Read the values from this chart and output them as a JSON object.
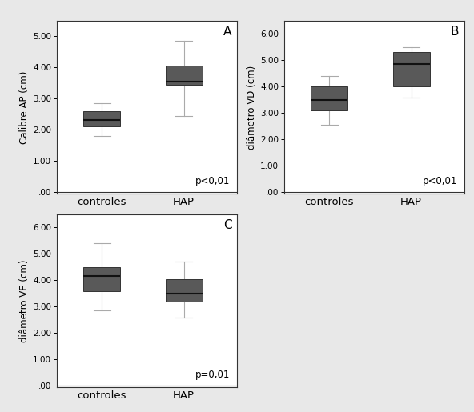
{
  "panels": [
    {
      "label": "A",
      "ylabel": "Calibre AP (cm)",
      "ylim": [
        -0.05,
        5.5
      ],
      "yticks": [
        0.0,
        1.0,
        2.0,
        3.0,
        4.0,
        5.0
      ],
      "ytick_labels": [
        ".00",
        "1.00",
        "2.00",
        "3.00",
        "4.00",
        "5.00"
      ],
      "ptext": "p<0,01",
      "groups": [
        {
          "name": "controles",
          "median": 2.3,
          "q1": 2.1,
          "q3": 2.6,
          "whisker_low": 1.8,
          "whisker_high": 2.85
        },
        {
          "name": "HAP",
          "median": 3.55,
          "q1": 3.45,
          "q3": 4.05,
          "whisker_low": 2.45,
          "whisker_high": 4.85
        }
      ]
    },
    {
      "label": "B",
      "ylabel": "diâmetro VD (cm)",
      "ylim": [
        -0.05,
        6.5
      ],
      "yticks": [
        0.0,
        1.0,
        2.0,
        3.0,
        4.0,
        5.0,
        6.0
      ],
      "ytick_labels": [
        ".00",
        "1.00",
        "2.00",
        "3.00",
        "4.00",
        "5.00",
        "6.00"
      ],
      "ptext": "p<0,01",
      "groups": [
        {
          "name": "controles",
          "median": 3.5,
          "q1": 3.1,
          "q3": 4.0,
          "whisker_low": 2.55,
          "whisker_high": 4.4
        },
        {
          "name": "HAP",
          "median": 4.85,
          "q1": 4.0,
          "q3": 5.3,
          "whisker_low": 3.6,
          "whisker_high": 5.5
        }
      ]
    },
    {
      "label": "C",
      "ylabel": "diâmetro VE (cm)",
      "ylim": [
        -0.05,
        6.5
      ],
      "yticks": [
        0.0,
        1.0,
        2.0,
        3.0,
        4.0,
        5.0,
        6.0
      ],
      "ytick_labels": [
        ".00",
        "1.00",
        "2.00",
        "3.00",
        "4.00",
        "5.00",
        "6.00"
      ],
      "ptext": "p=0,01",
      "groups": [
        {
          "name": "controles",
          "median": 4.15,
          "q1": 3.6,
          "q3": 4.5,
          "whisker_low": 2.85,
          "whisker_high": 5.4
        },
        {
          "name": "HAP",
          "median": 3.5,
          "q1": 3.2,
          "q3": 4.05,
          "whisker_low": 2.6,
          "whisker_high": 4.7
        }
      ]
    }
  ],
  "box_color": "#595959",
  "median_color": "#111111",
  "whisker_color": "#aaaaaa",
  "box_width": 0.45,
  "background_color": "#e8e8e8",
  "panel_bg": "#ffffff"
}
